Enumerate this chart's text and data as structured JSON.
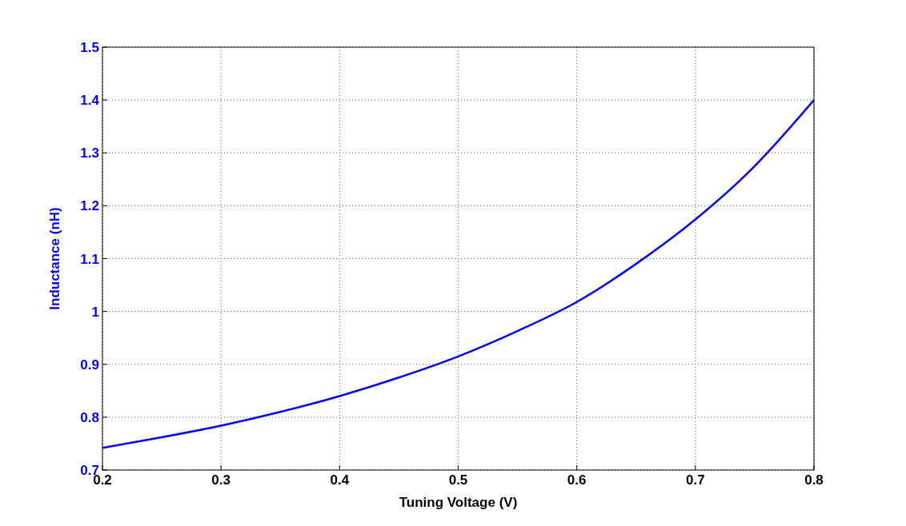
{
  "chart_data": {
    "type": "line",
    "xlabel": "Tuning Voltage (V)",
    "ylabel": "Inductance (nH)",
    "x": [
      0.2,
      0.25,
      0.3,
      0.35,
      0.4,
      0.45,
      0.5,
      0.55,
      0.6,
      0.65,
      0.7,
      0.75,
      0.8
    ],
    "series": [
      {
        "color": "#0000ff",
        "values": [
          0.742,
          0.762,
          0.784,
          0.81,
          0.84,
          0.875,
          0.915,
          0.963,
          1.018,
          1.09,
          1.174,
          1.275,
          1.4
        ]
      }
    ],
    "xlim": [
      0.2,
      0.8
    ],
    "xticks": [
      0.2,
      0.3,
      0.4,
      0.5,
      0.6,
      0.7,
      0.8
    ],
    "ylim": [
      0.7,
      1.5
    ],
    "yticks": [
      0.7,
      0.8,
      0.9,
      1,
      1.1,
      1.2,
      1.3,
      1.4,
      1.5
    ],
    "grid": true,
    "line_style": "solid"
  }
}
